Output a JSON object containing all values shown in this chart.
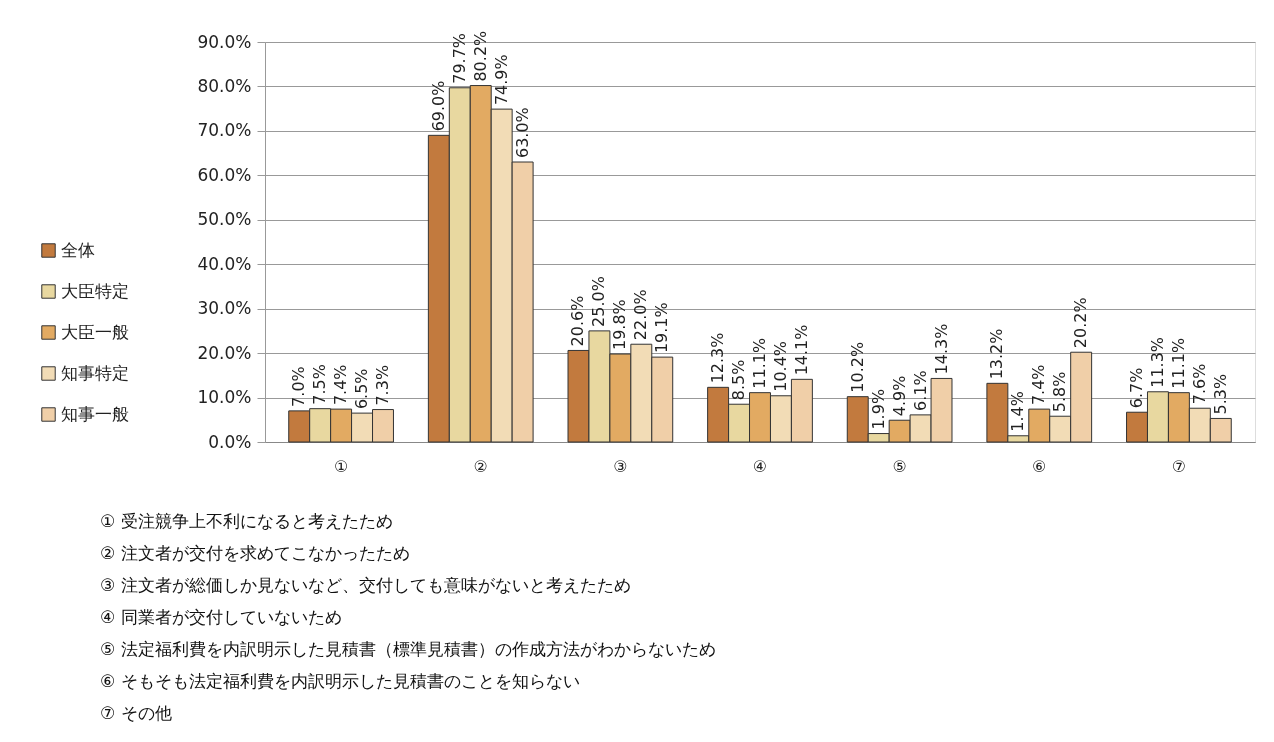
{
  "chart_data": {
    "type": "bar",
    "categories": [
      "①",
      "②",
      "③",
      "④",
      "⑤",
      "⑥",
      "⑦"
    ],
    "series": [
      {
        "name": "全体",
        "color": "#c27a3e",
        "values": [
          7.0,
          69.0,
          20.6,
          12.3,
          10.2,
          13.2,
          6.7
        ],
        "value_labels": [
          "7.0%",
          "69.0%",
          "20.6%",
          "12.3%",
          "10.2%",
          "13.2%",
          "6.7%"
        ]
      },
      {
        "name": "大臣特定",
        "color": "#e8d8a0",
        "values": [
          7.5,
          79.7,
          25.0,
          8.5,
          1.9,
          1.4,
          11.3
        ],
        "value_labels": [
          "7.5%",
          "79.7%",
          "25.0%",
          "8.5%",
          "1.9%",
          "1.4%",
          "11.3%"
        ]
      },
      {
        "name": "大臣一般",
        "color": "#e2aa62",
        "values": [
          7.4,
          80.2,
          19.8,
          11.1,
          4.9,
          7.4,
          11.1
        ],
        "value_labels": [
          "7.4%",
          "80.2%",
          "19.8%",
          "11.1%",
          "4.9%",
          "7.4%",
          "11.1%"
        ]
      },
      {
        "name": "知事特定",
        "color": "#f2dcb6",
        "values": [
          6.5,
          74.9,
          22.0,
          10.4,
          6.1,
          5.8,
          7.6
        ],
        "value_labels": [
          "6.5%",
          "74.9%",
          "22.0%",
          "10.4%",
          "6.1%",
          "5.8%",
          "7.6%"
        ]
      },
      {
        "name": "知事一般",
        "color": "#f0cfa8",
        "values": [
          7.3,
          63.0,
          19.1,
          14.1,
          14.3,
          20.2,
          5.3
        ],
        "value_labels": [
          "7.3%",
          "63.0%",
          "19.1%",
          "14.1%",
          "14.3%",
          "20.2%",
          "5.3%"
        ]
      }
    ],
    "ylim": [
      0,
      90
    ],
    "yticks": [
      {
        "value": 0,
        "label": "0.0%"
      },
      {
        "value": 10,
        "label": "10.0%"
      },
      {
        "value": 20,
        "label": "20.0%"
      },
      {
        "value": 30,
        "label": "30.0%"
      },
      {
        "value": 40,
        "label": "40.0%"
      },
      {
        "value": 50,
        "label": "50.0%"
      },
      {
        "value": 60,
        "label": "60.0%"
      },
      {
        "value": 70,
        "label": "70.0%"
      },
      {
        "value": 80,
        "label": "80.0%"
      },
      {
        "value": 90,
        "label": "90.0%"
      }
    ],
    "grid": "y",
    "legend": "left",
    "annotations": [
      "① 受注競争上不利になると考えたため",
      "② 注文者が交付を求めてこなかったため",
      "③ 注文者が総価しか見ないなど、交付しても意味がないと考えたため",
      "④ 同業者が交付していないため",
      "⑤ 法定福利費を内訳明示した見積書（標準見積書）の作成方法がわからないため",
      "⑥ そもそも法定福利費を内訳明示した見積書のことを知らない",
      "⑦ その他"
    ]
  }
}
